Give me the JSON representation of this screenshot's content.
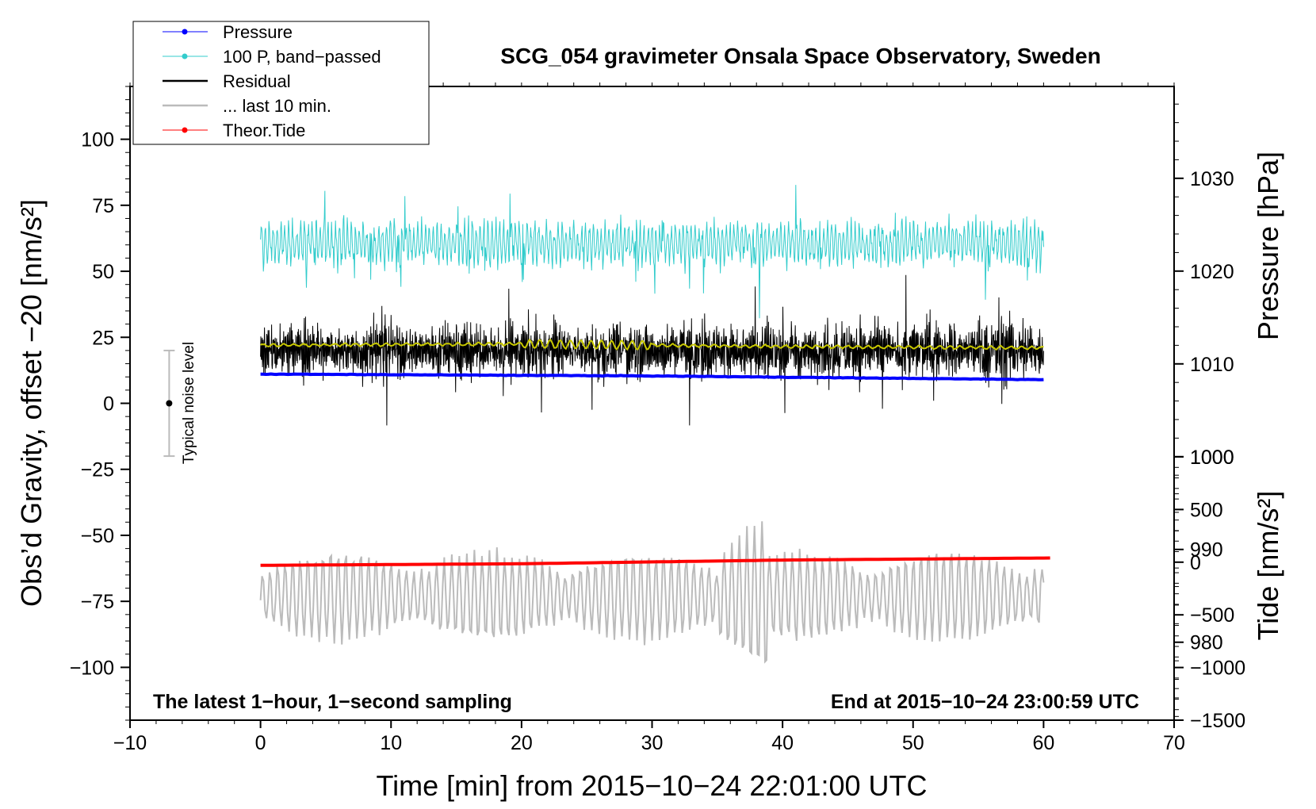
{
  "chart_data": {
    "type": "line",
    "title": "SCG_054 gravimeter Onsala Space Observatory, Sweden",
    "xlabel": "Time [min] from 2015−10−24 22:01:00 UTC",
    "ylabel_left": "Obs’d Gravity, offset −20 [nm/s²]",
    "ylabel_right_top": "Pressure [hPa]",
    "ylabel_right_bottom": "Tide [nm/s²]",
    "xlim": [
      -10,
      70
    ],
    "ylim": [
      -120,
      120
    ],
    "x_ticks": [
      -10,
      0,
      10,
      20,
      30,
      40,
      50,
      60,
      70
    ],
    "x_tick_labels": [
      "−10",
      "0",
      "10",
      "20",
      "30",
      "40",
      "50",
      "60",
      "70"
    ],
    "y_ticks": [
      -100,
      -75,
      -50,
      -25,
      0,
      25,
      50,
      75,
      100
    ],
    "y_tick_labels": [
      "−100",
      "−75",
      "−50",
      "−25",
      "0",
      "25",
      "50",
      "75",
      "100"
    ],
    "pressure_axis": {
      "ticks": [
        980,
        990,
        1000,
        1010,
        1020,
        1030
      ],
      "tick_labels": [
        "980",
        "990",
        "1000",
        "1010",
        "1020",
        "1030"
      ],
      "range": [
        971.6,
        1039.9
      ]
    },
    "tide_axis": {
      "ticks": [
        -1500,
        -1000,
        -500,
        0,
        500,
        1000
      ],
      "tick_labels": [
        "−1500",
        "−1000",
        "−500",
        "0",
        "500",
        "1000"
      ],
      "range": [
        -1500,
        1000
      ]
    },
    "grid": false,
    "legend_position": "top-left",
    "legend": [
      {
        "label": "Pressure",
        "color": "#0000ff",
        "style": "line-dot"
      },
      {
        "label": "100 P, band−passed",
        "color": "#33cccc",
        "style": "line-dot"
      },
      {
        "label": "Residual",
        "color": "#000000",
        "style": "line"
      },
      {
        "label": "... last 10 min.",
        "color": "#bbbbbb",
        "style": "line"
      },
      {
        "label": "Theor.Tide",
        "color": "#ff0000",
        "style": "line-dot"
      }
    ],
    "series": [
      {
        "name": "Pressure",
        "axis": "pressure",
        "color": "#0000ff",
        "x": [
          0,
          15,
          30,
          45,
          60
        ],
        "values": [
          1008.9,
          1008.8,
          1008.7,
          1008.5,
          1008.3
        ]
      },
      {
        "name": "100 P, band−passed",
        "axis": "left",
        "color": "#33cccc",
        "center": 60.5,
        "amplitude": 9,
        "x_range": [
          0,
          60
        ]
      },
      {
        "name": "Residual",
        "axis": "left",
        "color": "#000000",
        "center": 20,
        "amplitude": 18,
        "x_range": [
          0,
          60
        ]
      },
      {
        "name": "Residual smoothed",
        "axis": "left",
        "color": "#c8c800",
        "x": [
          0,
          20,
          40,
          60
        ],
        "values": [
          22,
          22.5,
          21.5,
          21
        ]
      },
      {
        "name": "... last 10 min.",
        "axis": "left",
        "color": "#bbbbbb",
        "center": -73,
        "amplitude": 17,
        "x_range": [
          0,
          60
        ]
      },
      {
        "name": "Theor.Tide",
        "axis": "tide",
        "color": "#ff0000",
        "x": [
          0,
          20,
          40,
          60.5
        ],
        "values": [
          -30,
          -15,
          20,
          40
        ]
      }
    ],
    "noise_bar": {
      "x": -7,
      "center": 0,
      "low": -20,
      "high": 20,
      "label": "Typical noise level"
    },
    "annotations": {
      "bottom_left": "The latest 1−hour, 1−second sampling",
      "bottom_right": "End at 2015−10−24 23:00:59 UTC"
    }
  }
}
